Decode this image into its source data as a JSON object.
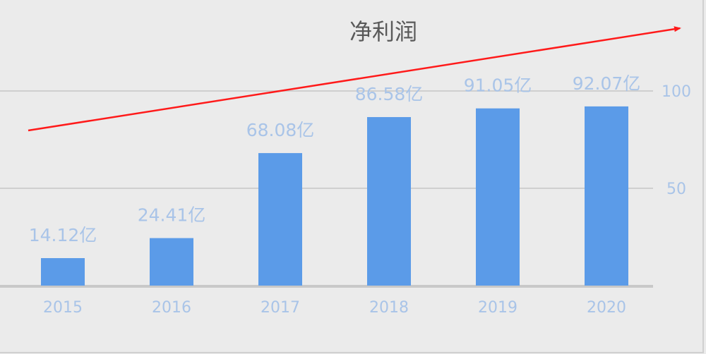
{
  "chart_data": {
    "type": "bar",
    "title": "净利润",
    "categories": [
      "2015",
      "2016",
      "2017",
      "2018",
      "2019",
      "2020"
    ],
    "values": [
      14.12,
      24.41,
      68.08,
      86.58,
      91.05,
      92.07
    ],
    "data_labels": [
      "14.12亿",
      "24.41亿",
      "68.08亿",
      "86.58亿",
      "91.05亿",
      "92.07亿"
    ],
    "y_axis": {
      "position": "right",
      "ticks": [
        50,
        100
      ],
      "tick_labels": [
        "50",
        "100"
      ],
      "ylim": [
        0,
        100
      ]
    },
    "grid": true,
    "annotation": "red upward trend arrow",
    "colors": {
      "bar": "#5b9be8",
      "label": "#a9c4e8",
      "arrow": "#ff1a1a",
      "background": "#ebebeb",
      "grid": "#cfcfcf"
    }
  }
}
